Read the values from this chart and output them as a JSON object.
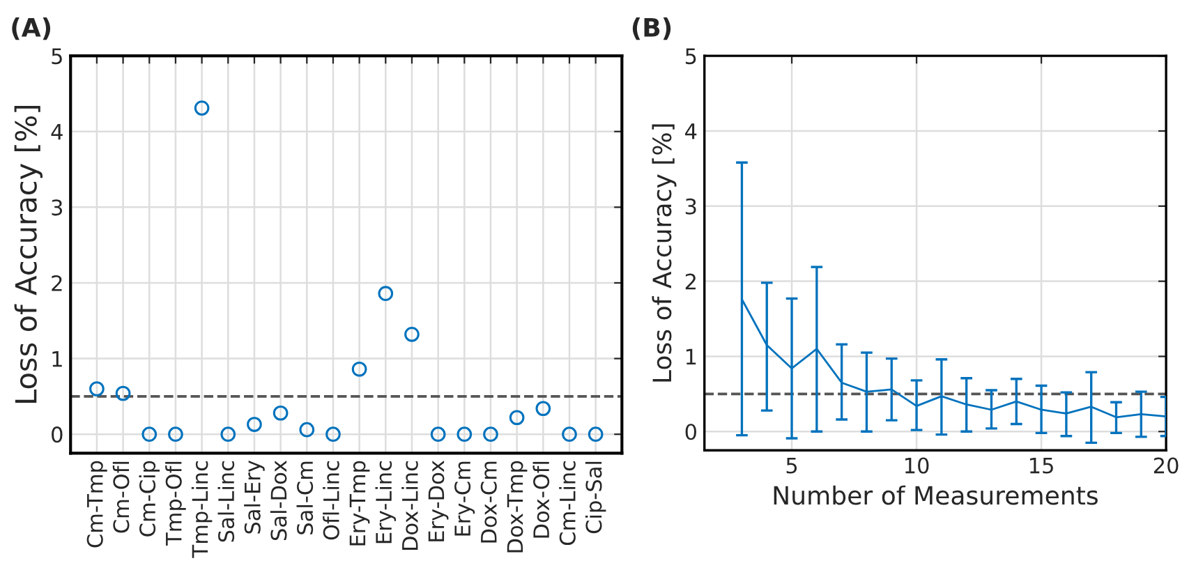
{
  "chart_data": [
    {
      "type": "scatter",
      "title": "(A)",
      "ylabel": "Loss of Accuracy [%]",
      "categories": [
        "Cm-Tmp",
        "Cm-Ofl",
        "Cm-Cip",
        "Tmp-Ofl",
        "Tmp-Linc",
        "Sal-Linc",
        "Sal-Ery",
        "Sal-Dox",
        "Sal-Cm",
        "Ofl-Linc",
        "Ery-Tmp",
        "Ery-Linc",
        "Dox-Linc",
        "Ery-Dox",
        "Ery-Cm",
        "Dox-Cm",
        "Dox-Tmp",
        "Dox-Ofl",
        "Cm-Linc",
        "Cip-Sal"
      ],
      "series": [
        {
          "color": "#0072bd",
          "values": [
            0.6,
            0.54,
            0,
            0,
            4.31,
            0,
            0.13,
            0.28,
            0.06,
            0,
            0.86,
            1.86,
            1.32,
            0,
            0,
            0,
            0.22,
            0.34,
            0,
            0
          ]
        }
      ],
      "marker": "circle",
      "ylim": [
        -0.25,
        5
      ],
      "yticks": [
        0,
        1,
        2,
        3,
        4,
        5
      ],
      "grid": true,
      "ref_lines": [
        {
          "axis": "y",
          "value": 0.5,
          "color": "#555555",
          "line_style": "dashed"
        }
      ]
    },
    {
      "type": "line",
      "title": "(B)",
      "xlabel": "Number of Measurements",
      "ylabel": "Loss of Accuracy [%]",
      "x": [
        3,
        4,
        5,
        6,
        7,
        8,
        9,
        10,
        11,
        12,
        13,
        14,
        15,
        16,
        17,
        18,
        19,
        20
      ],
      "series": [
        {
          "color": "#0072bd",
          "values": [
            1.76,
            1.15,
            0.84,
            1.1,
            0.65,
            0.53,
            0.56,
            0.34,
            0.47,
            0.36,
            0.29,
            0.4,
            0.29,
            0.24,
            0.33,
            0.19,
            0.23,
            0.2
          ],
          "errors": [
            [
              -0.05,
              3.58
            ],
            [
              0.28,
              1.98
            ],
            [
              -0.09,
              1.77
            ],
            [
              0,
              2.19
            ],
            [
              0.16,
              1.16
            ],
            [
              0,
              1.05
            ],
            [
              0.15,
              0.97
            ],
            [
              0.02,
              0.68
            ],
            [
              -0.04,
              0.96
            ],
            [
              0,
              0.71
            ],
            [
              0.04,
              0.55
            ],
            [
              0.1,
              0.7
            ],
            [
              -0.02,
              0.61
            ],
            [
              -0.06,
              0.52
            ],
            [
              -0.15,
              0.79
            ],
            [
              -0.02,
              0.39
            ],
            [
              -0.07,
              0.53
            ],
            [
              -0.06,
              0.46
            ]
          ]
        }
      ],
      "xlim": [
        1.5,
        20
      ],
      "xticks": [
        5,
        10,
        15,
        20
      ],
      "ylim": [
        -0.25,
        5
      ],
      "yticks": [
        0,
        1,
        2,
        3,
        4,
        5
      ],
      "grid": true,
      "ref_lines": [
        {
          "axis": "y",
          "value": 0.5,
          "color": "#555555",
          "line_style": "dashed"
        }
      ]
    }
  ]
}
